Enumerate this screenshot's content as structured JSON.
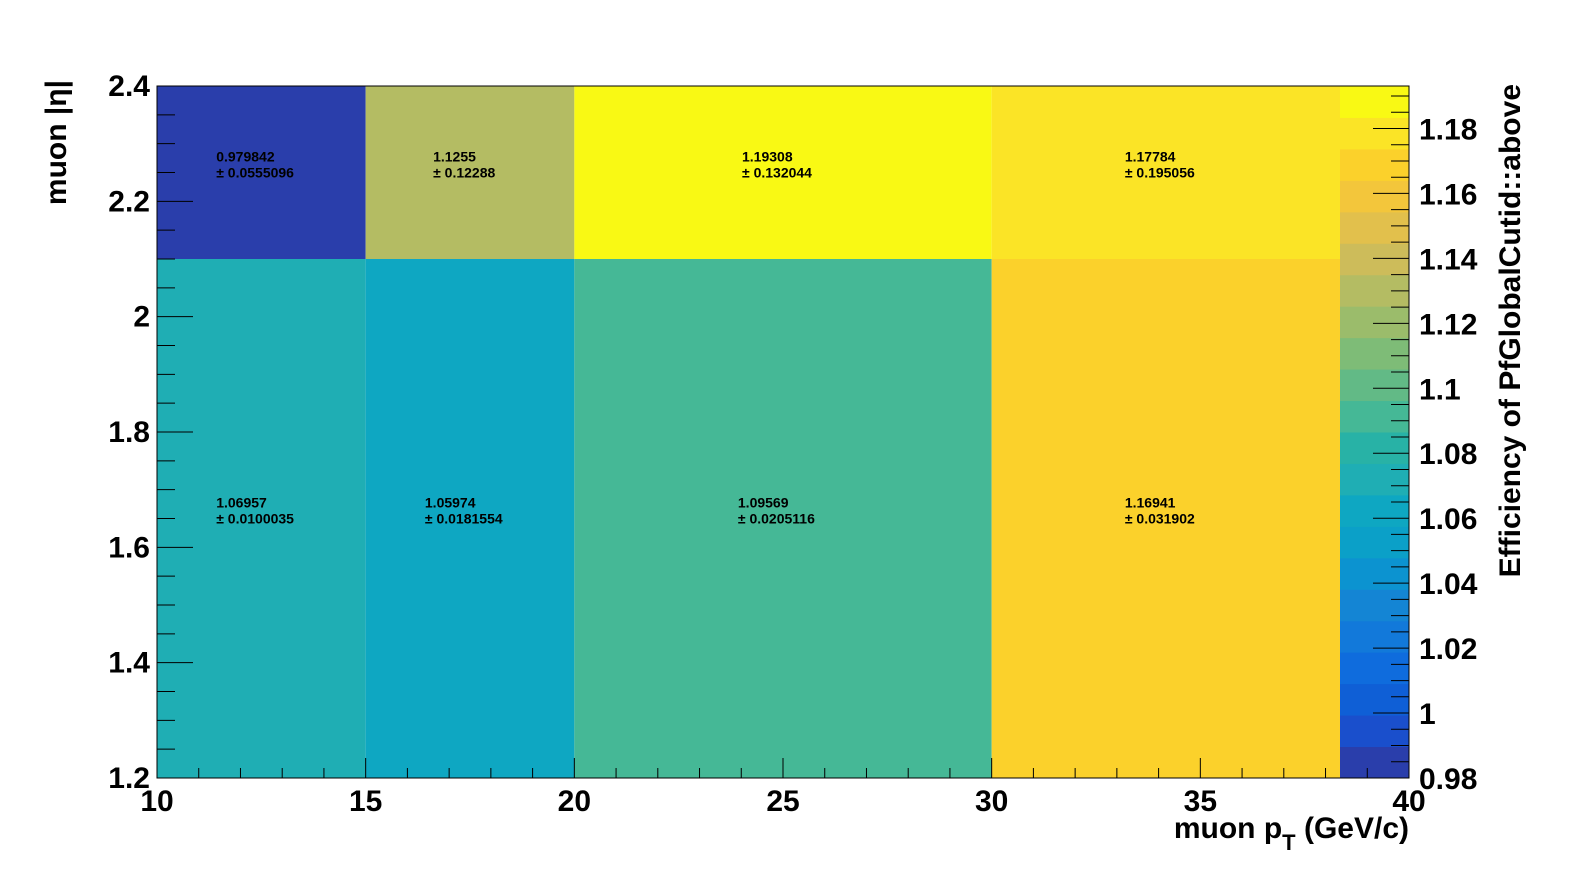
{
  "chart_data": {
    "type": "heatmap",
    "title": "",
    "xlabel": "muon p",
    "xlabel_sub": "T",
    "xlabel_unit": " (GeV/c)",
    "ylabel": "muon |η|",
    "zlabel": "Efficiency of PfGlobalCutid::above",
    "x_edges": [
      10,
      15,
      20,
      30,
      40
    ],
    "y_edges": [
      1.2,
      2.1,
      2.4
    ],
    "xlim": [
      10,
      40
    ],
    "ylim": [
      1.2,
      2.4
    ],
    "zlim": [
      0.98,
      1.19308
    ],
    "x_ticks": [
      "10",
      "15",
      "20",
      "25",
      "30",
      "35",
      "40"
    ],
    "y_ticks": [
      "1.2",
      "1.4",
      "1.6",
      "1.8",
      "2",
      "2.2",
      "2.4"
    ],
    "z_ticks": [
      "0.98",
      "1",
      "1.02",
      "1.04",
      "1.06",
      "1.08",
      "1.1",
      "1.12",
      "1.14",
      "1.16",
      "1.18"
    ],
    "cells": [
      {
        "x": [
          10,
          15
        ],
        "y": [
          2.1,
          2.4
        ],
        "value": 0.979842,
        "error": 0.0555096,
        "value_text": "0.979842",
        "error_text": "± 0.0555096"
      },
      {
        "x": [
          15,
          20
        ],
        "y": [
          2.1,
          2.4
        ],
        "value": 1.1255,
        "error": 0.12288,
        "value_text": "1.1255",
        "error_text": "± 0.12288"
      },
      {
        "x": [
          20,
          30
        ],
        "y": [
          2.1,
          2.4
        ],
        "value": 1.19308,
        "error": 0.132044,
        "value_text": "1.19308",
        "error_text": "± 0.132044"
      },
      {
        "x": [
          30,
          40
        ],
        "y": [
          2.1,
          2.4
        ],
        "value": 1.17784,
        "error": 0.195056,
        "value_text": "1.17784",
        "error_text": "± 0.195056"
      },
      {
        "x": [
          10,
          15
        ],
        "y": [
          1.2,
          2.1
        ],
        "value": 1.06957,
        "error": 0.0100035,
        "value_text": "1.06957",
        "error_text": "± 0.0100035"
      },
      {
        "x": [
          15,
          20
        ],
        "y": [
          1.2,
          2.1
        ],
        "value": 1.05974,
        "error": 0.0181554,
        "value_text": "1.05974",
        "error_text": "± 0.0181554"
      },
      {
        "x": [
          20,
          30
        ],
        "y": [
          1.2,
          2.1
        ],
        "value": 1.09569,
        "error": 0.0205116,
        "value_text": "1.09569",
        "error_text": "± 0.0205116"
      },
      {
        "x": [
          30,
          40
        ],
        "y": [
          1.2,
          2.1
        ],
        "value": 1.16941,
        "error": 0.031902,
        "value_text": "1.16941",
        "error_text": "± 0.031902"
      }
    ],
    "palette": [
      "#2a3eab",
      "#1a4fcc",
      "#0f5fd6",
      "#0f6cdd",
      "#1279da",
      "#1485d4",
      "#0c93d0",
      "#0ba0c8",
      "#0ea7c2",
      "#1faeb4",
      "#28b2a6",
      "#45b896",
      "#62ba86",
      "#7ebc77",
      "#9bbc6b",
      "#b4bc63",
      "#cdbc5a",
      "#e2c04c",
      "#f3c63b",
      "#fbd12b",
      "#fbe426",
      "#f9f914"
    ],
    "grid": false,
    "legend": "color-bar-right"
  }
}
